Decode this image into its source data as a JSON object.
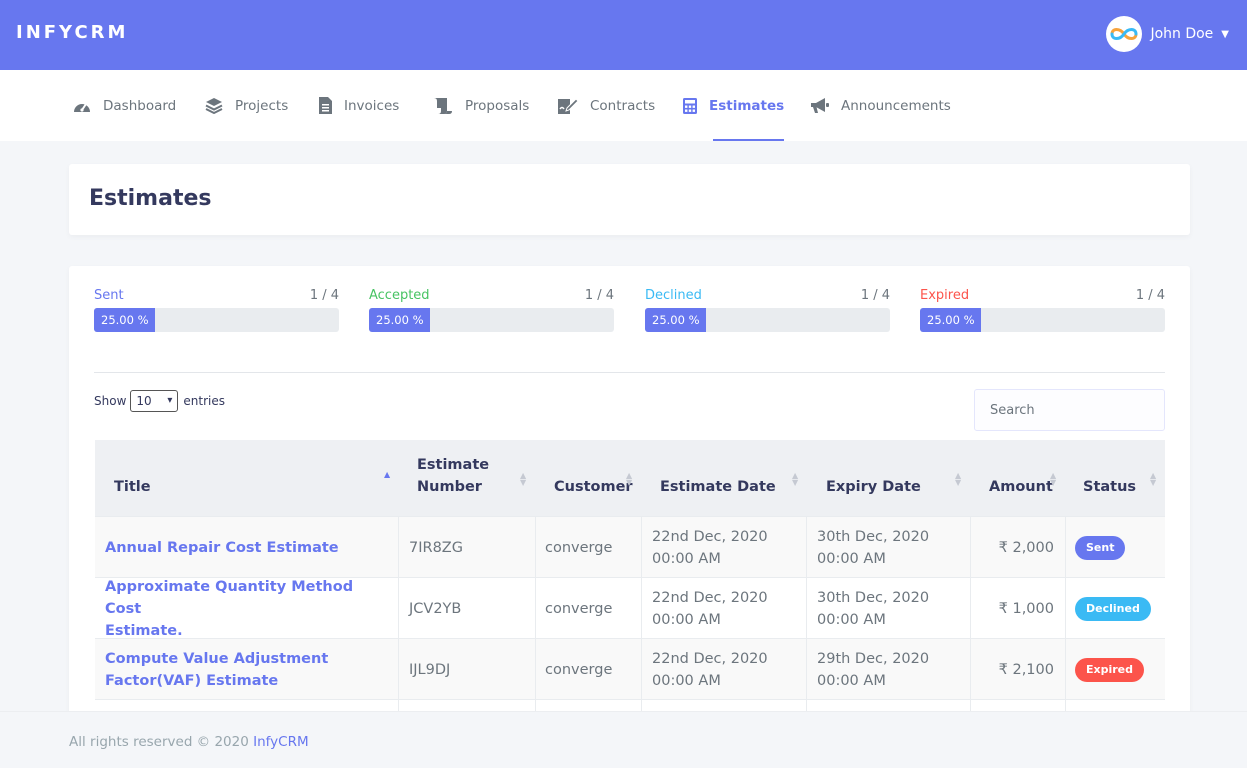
{
  "brand": "INFYCRM",
  "user": {
    "name": "John Doe"
  },
  "nav": {
    "items": [
      {
        "label": "Dashboard"
      },
      {
        "label": "Projects"
      },
      {
        "label": "Invoices"
      },
      {
        "label": "Proposals"
      },
      {
        "label": "Contracts"
      },
      {
        "label": "Estimates"
      },
      {
        "label": "Announcements"
      }
    ]
  },
  "page_title": "Estimates",
  "stats": [
    {
      "label": "Sent",
      "count": "1 / 4",
      "percent_text": "25.00 %",
      "percent": 25,
      "color": "#6777ef"
    },
    {
      "label": "Accepted",
      "count": "1 / 4",
      "percent_text": "25.00 %",
      "percent": 25,
      "color": "#47c363"
    },
    {
      "label": "Declined",
      "count": "1 / 4",
      "percent_text": "25.00 %",
      "percent": 25,
      "color": "#3abaf4"
    },
    {
      "label": "Expired",
      "count": "1 / 4",
      "percent_text": "25.00 %",
      "percent": 25,
      "color": "#fc544b"
    }
  ],
  "table_controls": {
    "show_label": "Show",
    "page_size": "10",
    "entries_label": "entries",
    "search_placeholder": "Search"
  },
  "table": {
    "headers": {
      "title": "Title",
      "estimate_number_1": "Estimate",
      "estimate_number_2": "Number",
      "customer": "Customer",
      "estimate_date": "Estimate Date",
      "expiry_date": "Expiry Date",
      "amount": "Amount",
      "status": "Status"
    },
    "rows": [
      {
        "title_1": "Annual Repair Cost Estimate",
        "title_2": "",
        "number": "7IR8ZG",
        "customer": "converge",
        "estimate_date_1": "22nd Dec, 2020",
        "estimate_date_2": "00:00 AM",
        "expiry_date_1": "30th Dec, 2020",
        "expiry_date_2": "00:00 AM",
        "amount": "₹ 2,000",
        "status": "Sent",
        "status_color": "#6777ef"
      },
      {
        "title_1": "Approximate Quantity Method Cost",
        "title_2": "Estimate.",
        "number": "JCV2YB",
        "customer": "converge",
        "estimate_date_1": "22nd Dec, 2020",
        "estimate_date_2": "00:00 AM",
        "expiry_date_1": "30th Dec, 2020",
        "expiry_date_2": "00:00 AM",
        "amount": "₹ 1,000",
        "status": "Declined",
        "status_color": "#3abaf4"
      },
      {
        "title_1": "Compute Value Adjustment",
        "title_2": "Factor(VAF) Estimate",
        "number": "IJL9DJ",
        "customer": "converge",
        "estimate_date_1": "22nd Dec, 2020",
        "estimate_date_2": "00:00 AM",
        "expiry_date_1": "29th Dec, 2020",
        "expiry_date_2": "00:00 AM",
        "amount": "₹ 2,100",
        "status": "Expired",
        "status_color": "#fc544b"
      }
    ]
  },
  "footer": {
    "text": "All rights reserved © 2020",
    "link": "InfyCRM"
  }
}
